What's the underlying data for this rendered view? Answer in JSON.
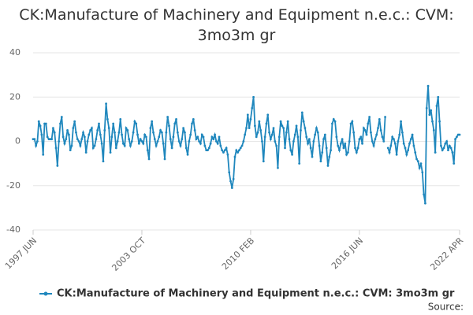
{
  "chart_data": {
    "type": "line",
    "title": "CK:Manufacture of Machinery and Equipment n.e.c.: CVM: 3mo3m gr",
    "source": "Source:",
    "categories": [
      "1997 JUN",
      null,
      null,
      null,
      null,
      null,
      null,
      null,
      null,
      null,
      null,
      null,
      null,
      null,
      null,
      null,
      null,
      null,
      null,
      null,
      null,
      null,
      null,
      null,
      null,
      null,
      null,
      null,
      null,
      null,
      null,
      null,
      null,
      null,
      null,
      null,
      null,
      null,
      null,
      null,
      null,
      null,
      null,
      null,
      null,
      null,
      null,
      null,
      null,
      null,
      null,
      null,
      null,
      null,
      null,
      null,
      null,
      null,
      null,
      null,
      null,
      null,
      null,
      null,
      null,
      null,
      null,
      null,
      null,
      null,
      null,
      null,
      null,
      null,
      null,
      null,
      "2003 OCT",
      null,
      null,
      null,
      null,
      null,
      null,
      null,
      null,
      null,
      null,
      null,
      null,
      null,
      null,
      null,
      null,
      null,
      null,
      null,
      null,
      null,
      null,
      null,
      null,
      null,
      null,
      null,
      null,
      null,
      null,
      null,
      null,
      null,
      null,
      null,
      null,
      null,
      null,
      null,
      null,
      null,
      null,
      null,
      null,
      null,
      null,
      null,
      null,
      null,
      null,
      null,
      null,
      null,
      null,
      null,
      null,
      null,
      null,
      null,
      null,
      null,
      null,
      null,
      null,
      null,
      null,
      null,
      null,
      null,
      null,
      null,
      null,
      null,
      null,
      null,
      "2010 FEB",
      null,
      null,
      null,
      null,
      null,
      null,
      null,
      null,
      null,
      null,
      null,
      null,
      null,
      null,
      null,
      null,
      null,
      null,
      null,
      null,
      null,
      null,
      null,
      null,
      null,
      null,
      null,
      null,
      null,
      null,
      null,
      null,
      null,
      null,
      null,
      null,
      null,
      null,
      null,
      null,
      null,
      null,
      null,
      null,
      null,
      null,
      null,
      null,
      null,
      null,
      null,
      null,
      null,
      null,
      null,
      null,
      null,
      null,
      null,
      null,
      null,
      null,
      null,
      null,
      null,
      null,
      null,
      null,
      null,
      null,
      null,
      null,
      null,
      null,
      null,
      "2016 JUN",
      null,
      null,
      null,
      null,
      null,
      null,
      null,
      null,
      null,
      null,
      null,
      null,
      null,
      null,
      null,
      null,
      null,
      null,
      null,
      null,
      null,
      null,
      null,
      null,
      null,
      null,
      null,
      null,
      null,
      null,
      null,
      null,
      null,
      null,
      null,
      null,
      null,
      null,
      null,
      null,
      null,
      null,
      null,
      null,
      null,
      null,
      null,
      null,
      null,
      null,
      null,
      null,
      null,
      null,
      null,
      null,
      null,
      null,
      null,
      null,
      null,
      null,
      null,
      null,
      null,
      null,
      null,
      null,
      null,
      "2022 APR"
    ],
    "series": [
      {
        "name": "CK:Manufacture of Machinery and Equipment n.e.c.: CVM: 3mo3m gr",
        "color": "#1f87bd",
        "values": [
          1,
          1,
          -2,
          0,
          9,
          7,
          3,
          -6,
          8,
          8,
          2,
          1,
          1,
          1,
          6,
          4,
          -3,
          -11,
          0,
          8,
          11,
          2,
          -1,
          1,
          5,
          3,
          -4,
          -2,
          6,
          9,
          4,
          1,
          0,
          -2,
          1,
          4,
          2,
          -5,
          0,
          3,
          5,
          6,
          -3,
          -2,
          1,
          5,
          8,
          3,
          -1,
          -9,
          5,
          17,
          10,
          6,
          -5,
          2,
          8,
          4,
          -3,
          0,
          4,
          10,
          3,
          -1,
          -2,
          6,
          5,
          1,
          -2,
          0,
          4,
          9,
          8,
          3,
          -1,
          1,
          0,
          -1,
          3,
          2,
          -4,
          -8,
          6,
          9,
          4,
          1,
          -2,
          0,
          2,
          5,
          4,
          -1,
          -8,
          4,
          11,
          7,
          1,
          -3,
          2,
          8,
          10,
          4,
          0,
          -2,
          1,
          6,
          4,
          -3,
          -6,
          0,
          3,
          8,
          10,
          5,
          1,
          2,
          0,
          -1,
          3,
          2,
          -2,
          -4,
          -4,
          -3,
          -1,
          2,
          1,
          3,
          0,
          -1,
          2,
          -2,
          -4,
          -5,
          -4,
          -3,
          -6,
          -14,
          -18,
          -21,
          -17,
          -7,
          -4,
          -5,
          -4,
          -3,
          -2,
          0,
          3,
          6,
          12,
          6,
          10,
          15,
          20,
          7,
          2,
          4,
          9,
          5,
          0,
          -9,
          2,
          8,
          12,
          4,
          1,
          3,
          6,
          0,
          -2,
          -12,
          2,
          9,
          7,
          6,
          -3,
          4,
          9,
          1,
          -4,
          -6,
          0,
          3,
          7,
          2,
          -10,
          5,
          13,
          9,
          6,
          2,
          -1,
          1,
          -3,
          -7,
          0,
          3,
          6,
          4,
          -2,
          -9,
          -5,
          1,
          3,
          -3,
          -11,
          -7,
          -4,
          8,
          10,
          9,
          2,
          -2,
          -4,
          -1,
          1,
          -3,
          -1,
          -6,
          -5,
          0,
          8,
          9,
          4,
          -3,
          -5,
          -3,
          1,
          2,
          -1,
          6,
          5,
          3,
          8,
          11,
          4,
          0,
          -2,
          1,
          3,
          6,
          10,
          5,
          2,
          0,
          11,
          null,
          -3,
          -5,
          -2,
          2,
          1,
          -1,
          -6,
          0,
          3,
          9,
          4,
          -1,
          -3,
          -6,
          -4,
          -1,
          1,
          3,
          -2,
          -5,
          -8,
          -9,
          -12,
          -10,
          -14,
          -24,
          -28,
          15,
          25,
          12,
          14,
          9,
          5,
          -5,
          16,
          20,
          9,
          -2,
          -4,
          -3,
          -1,
          0,
          -4,
          -2,
          -3,
          -5,
          -10,
          1,
          2,
          3,
          3
        ]
      }
    ],
    "ylim": [
      -40,
      40
    ],
    "yticks": [
      -40,
      -20,
      0,
      20,
      40
    ],
    "grid": true,
    "legend": "bottom"
  }
}
